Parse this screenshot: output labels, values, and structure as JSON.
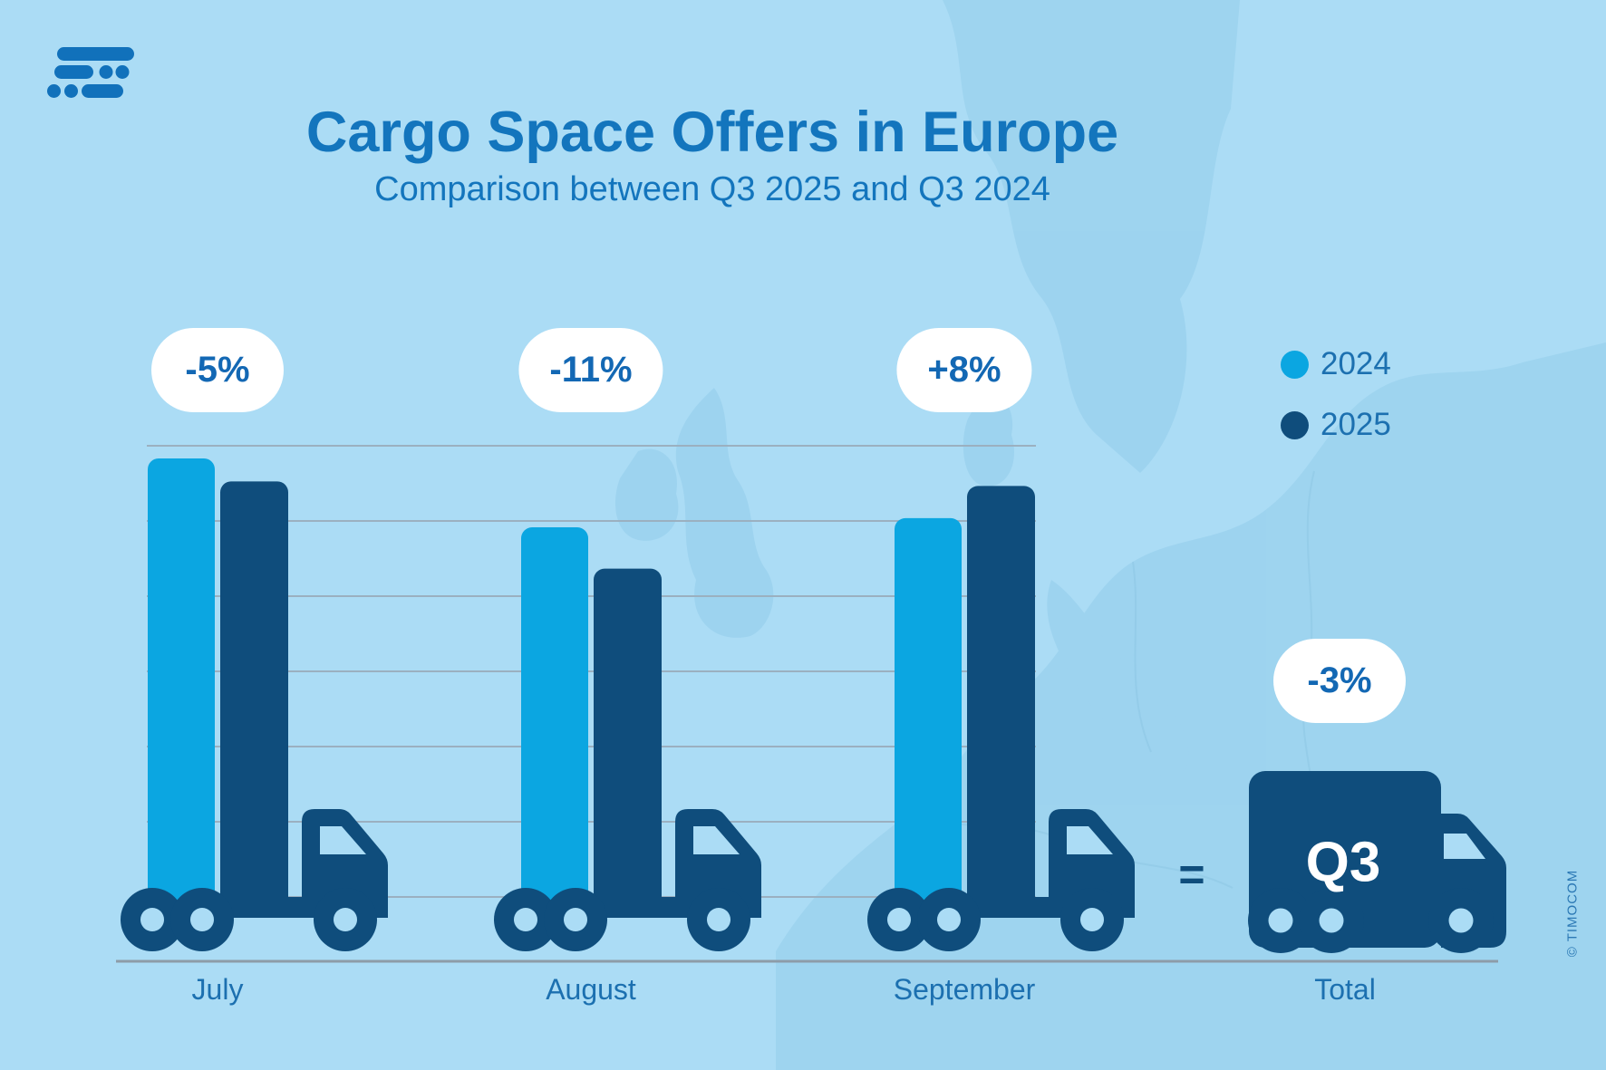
{
  "header": {
    "logo_name": "TIMOCOM logo"
  },
  "chart_data": {
    "type": "bar",
    "title": "Cargo Space Offers in Europe",
    "subtitle": "Comparison between Q3 2025 and Q3 2024",
    "categories": [
      "July",
      "August",
      "September"
    ],
    "series": [
      {
        "name": "2024",
        "color": "#0ba6e1",
        "values": [
          100,
          85,
          87
        ]
      },
      {
        "name": "2025",
        "color": "#0f4d7c",
        "values": [
          95,
          76,
          94
        ]
      }
    ],
    "change_labels": [
      "-5%",
      "-11%",
      "+8%"
    ],
    "total": {
      "category": "Total",
      "change_label": "-3%",
      "truck_label": "Q3"
    },
    "value_note": "relative index estimated from bar heights, July 2024 = 100",
    "ylim": [
      0,
      110
    ],
    "grid": true,
    "gridline_count": 7,
    "legend_position": "top-right"
  },
  "legend": {
    "items": [
      {
        "label": "2024",
        "color": "#0ba6e1"
      },
      {
        "label": "2025",
        "color": "#0f4d7c"
      }
    ]
  },
  "separator": {
    "symbol": "="
  },
  "footer": {
    "copyright": "© TIMOCOM"
  },
  "colors": {
    "background": "#abdcf5",
    "map_silhouette": "#8ec9e9",
    "bar_2024": "#0ba6e1",
    "bar_2025": "#0f4d7c",
    "heading_text": "#1375bd",
    "label_text": "#1c70b0",
    "badge_background": "#ffffff",
    "badge_text": "#1368b4",
    "gridline": "#9bb0c0",
    "axis_line": "#8d9ca8",
    "truck_window": "#abdcf5",
    "truck_text": "#ffffff",
    "logo_blue": "#1171bb"
  }
}
